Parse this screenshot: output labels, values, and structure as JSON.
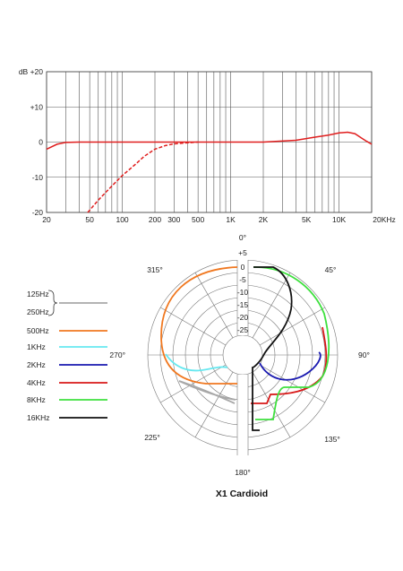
{
  "chart_data": [
    {
      "type": "line",
      "x_scale": "log",
      "xlim": [
        20,
        20000
      ],
      "ylim": [
        -20,
        20
      ],
      "y_ticks": [
        "dB +20",
        "+10",
        "0",
        "-10",
        "-20"
      ],
      "x_ticks": [
        "20",
        "50",
        "100",
        "200",
        "300",
        "500",
        "1K",
        "2K",
        "5K",
        "10K",
        "20KHz"
      ],
      "grid": true,
      "series": [
        {
          "color": "#e01e1e",
          "style": "solid",
          "x": [
            20,
            25,
            30,
            40,
            60,
            100,
            200,
            400,
            1000,
            2000,
            4000,
            6000,
            8000,
            10000,
            12000,
            14000,
            16000,
            18000,
            20000
          ],
          "y": [
            -2,
            -0.6,
            -0.1,
            0,
            0,
            0,
            0,
            0,
            0,
            0,
            0.5,
            1.4,
            2.0,
            2.6,
            2.8,
            2.4,
            1.2,
            0.2,
            -0.6
          ]
        },
        {
          "color": "#e01e1e",
          "style": "dashed",
          "x": [
            48,
            60,
            80,
            100,
            130,
            160,
            200,
            250,
            300,
            400,
            500
          ],
          "y": [
            -20,
            -16.5,
            -12.5,
            -9.5,
            -6.5,
            -4,
            -2,
            -1,
            -0.5,
            -0.2,
            0
          ]
        }
      ]
    },
    {
      "type": "polar",
      "title": "X1 Cardioid",
      "r_ticks": [
        "+5",
        "0",
        "-5",
        "-10",
        "-15",
        "-20",
        "-25"
      ],
      "angle_labels": [
        "0°",
        "45°",
        "90°",
        "135°",
        "180°",
        "225°",
        "270°",
        "315°"
      ],
      "legend": [
        "125Hz",
        "250Hz",
        "500Hz",
        "1KHz",
        "2KHz",
        "4KHz",
        "8KHz",
        "16KHz"
      ],
      "series": [
        {
          "name": "125Hz / 250Hz",
          "color": "#a8a8a8"
        },
        {
          "name": "500Hz",
          "color": "#f07820"
        },
        {
          "name": "1KHz",
          "color": "#66e8f0"
        },
        {
          "name": "2KHz",
          "color": "#1a1ab0"
        },
        {
          "name": "4KHz",
          "color": "#d81818"
        },
        {
          "name": "8KHz",
          "color": "#3ee03e"
        },
        {
          "name": "16KHz",
          "color": "#111111"
        }
      ]
    }
  ]
}
